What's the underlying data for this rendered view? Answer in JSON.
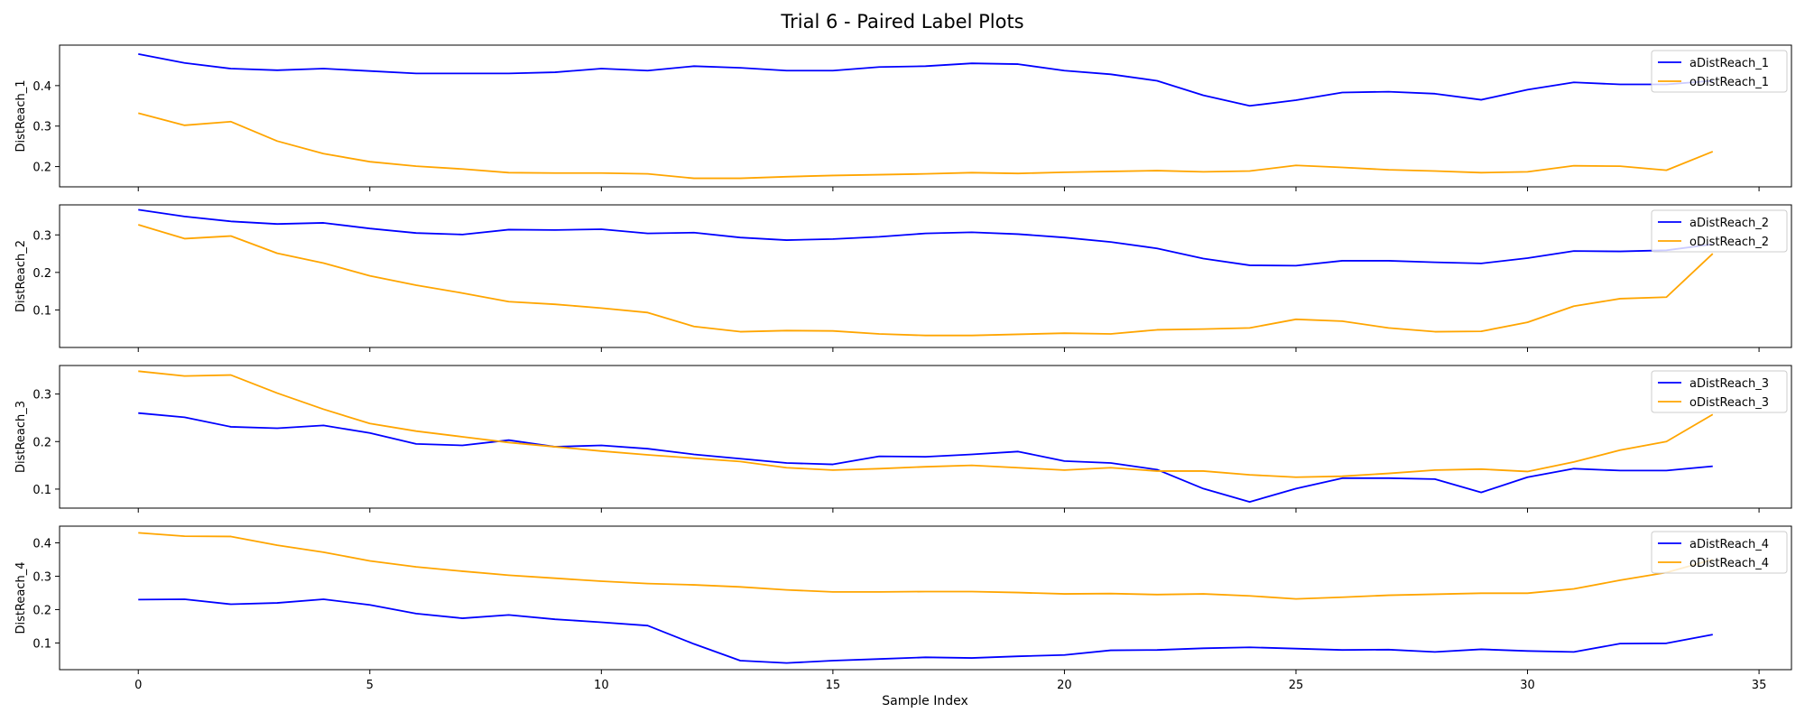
{
  "figure": {
    "title": "Trial 6 - Paired Label Plots"
  },
  "chart_data": {
    "type": "line",
    "title": "Trial 6 - Paired Label Plots",
    "xlabel": "Sample Index",
    "x": [
      0,
      1,
      2,
      3,
      4,
      5,
      6,
      7,
      8,
      9,
      10,
      11,
      12,
      13,
      14,
      15,
      16,
      17,
      18,
      19,
      20,
      21,
      22,
      23,
      24,
      25,
      26,
      27,
      28,
      29,
      30,
      31,
      32,
      33,
      34
    ],
    "xlim": [
      -1.7,
      35.7
    ],
    "xticks": [
      0,
      5,
      10,
      15,
      20,
      25,
      30,
      35
    ],
    "xtick_labels": [
      "0",
      "5",
      "10",
      "15",
      "20",
      "25",
      "30",
      "35"
    ],
    "legend_position": "top-right",
    "grid": false,
    "colors": {
      "a_series": "#0000ff",
      "o_series": "#ffa500"
    },
    "subplots": [
      {
        "ylabel": "DistReach_1",
        "ylim": [
          0.15,
          0.5
        ],
        "yticks": [
          0.2,
          0.3,
          0.4
        ],
        "ytick_labels": [
          "0.2",
          "0.3",
          "0.4"
        ],
        "series": [
          {
            "name": "aDistReach_1",
            "color": "#0000ff",
            "values": [
              0.478,
              0.456,
              0.442,
              0.438,
              0.442,
              0.436,
              0.43,
              0.43,
              0.43,
              0.433,
              0.442,
              0.437,
              0.448,
              0.444,
              0.437,
              0.437,
              0.446,
              0.448,
              0.455,
              0.453,
              0.437,
              0.428,
              0.412,
              0.376,
              0.35,
              0.364,
              0.383,
              0.385,
              0.38,
              0.365,
              0.39,
              0.408,
              0.403,
              0.403,
              0.412
            ]
          },
          {
            "name": "oDistReach_1",
            "color": "#ffa500",
            "values": [
              0.332,
              0.302,
              0.311,
              0.263,
              0.232,
              0.212,
              0.201,
              0.194,
              0.185,
              0.184,
              0.184,
              0.182,
              0.171,
              0.171,
              0.175,
              0.178,
              0.18,
              0.182,
              0.185,
              0.183,
              0.186,
              0.188,
              0.19,
              0.187,
              0.189,
              0.203,
              0.198,
              0.192,
              0.189,
              0.185,
              0.187,
              0.202,
              0.201,
              0.191,
              0.237
            ]
          }
        ]
      },
      {
        "ylabel": "DistReach_2",
        "ylim": [
          0.0,
          0.38
        ],
        "yticks": [
          0.1,
          0.2,
          0.3
        ],
        "ytick_labels": [
          "0.1",
          "0.2",
          "0.3"
        ],
        "series": [
          {
            "name": "aDistReach_2",
            "color": "#0000ff",
            "values": [
              0.367,
              0.349,
              0.336,
              0.329,
              0.332,
              0.317,
              0.305,
              0.301,
              0.314,
              0.313,
              0.315,
              0.304,
              0.306,
              0.293,
              0.286,
              0.289,
              0.295,
              0.304,
              0.307,
              0.302,
              0.293,
              0.281,
              0.264,
              0.237,
              0.219,
              0.218,
              0.231,
              0.231,
              0.227,
              0.224,
              0.238,
              0.257,
              0.256,
              0.259,
              0.275
            ]
          },
          {
            "name": "oDistReach_2",
            "color": "#ffa500",
            "values": [
              0.327,
              0.29,
              0.297,
              0.251,
              0.225,
              0.191,
              0.166,
              0.145,
              0.122,
              0.115,
              0.105,
              0.093,
              0.056,
              0.042,
              0.045,
              0.044,
              0.036,
              0.032,
              0.032,
              0.035,
              0.038,
              0.036,
              0.047,
              0.049,
              0.052,
              0.075,
              0.07,
              0.052,
              0.042,
              0.043,
              0.067,
              0.11,
              0.13,
              0.134,
              0.25
            ]
          }
        ]
      },
      {
        "ylabel": "DistReach_3",
        "ylim": [
          0.06,
          0.36
        ],
        "yticks": [
          0.1,
          0.2,
          0.3
        ],
        "ytick_labels": [
          "0.1",
          "0.2",
          "0.3"
        ],
        "series": [
          {
            "name": "aDistReach_3",
            "color": "#0000ff",
            "values": [
              0.26,
              0.251,
              0.231,
              0.228,
              0.234,
              0.218,
              0.195,
              0.192,
              0.203,
              0.189,
              0.192,
              0.185,
              0.173,
              0.164,
              0.155,
              0.152,
              0.169,
              0.168,
              0.173,
              0.179,
              0.159,
              0.155,
              0.141,
              0.101,
              0.073,
              0.101,
              0.123,
              0.123,
              0.121,
              0.093,
              0.125,
              0.143,
              0.139,
              0.139,
              0.148
            ]
          },
          {
            "name": "oDistReach_3",
            "color": "#ffa500",
            "values": [
              0.348,
              0.338,
              0.34,
              0.302,
              0.268,
              0.238,
              0.222,
              0.21,
              0.198,
              0.189,
              0.18,
              0.172,
              0.165,
              0.158,
              0.145,
              0.14,
              0.143,
              0.147,
              0.15,
              0.145,
              0.14,
              0.145,
              0.138,
              0.138,
              0.13,
              0.125,
              0.127,
              0.133,
              0.14,
              0.142,
              0.137,
              0.157,
              0.182,
              0.2,
              0.257
            ]
          }
        ]
      },
      {
        "ylabel": "DistReach_4",
        "ylim": [
          0.02,
          0.45
        ],
        "yticks": [
          0.1,
          0.2,
          0.3,
          0.4
        ],
        "ytick_labels": [
          "0.1",
          "0.2",
          "0.3",
          "0.4"
        ],
        "series": [
          {
            "name": "aDistReach_4",
            "color": "#0000ff",
            "values": [
              0.23,
              0.231,
              0.216,
              0.22,
              0.231,
              0.214,
              0.188,
              0.174,
              0.184,
              0.171,
              0.162,
              0.152,
              0.097,
              0.047,
              0.04,
              0.047,
              0.052,
              0.057,
              0.055,
              0.06,
              0.064,
              0.078,
              0.079,
              0.084,
              0.087,
              0.083,
              0.079,
              0.08,
              0.073,
              0.081,
              0.076,
              0.073,
              0.098,
              0.099,
              0.125
            ]
          },
          {
            "name": "oDistReach_4",
            "color": "#ffa500",
            "values": [
              0.43,
              0.42,
              0.419,
              0.393,
              0.372,
              0.346,
              0.328,
              0.315,
              0.303,
              0.294,
              0.285,
              0.278,
              0.274,
              0.268,
              0.259,
              0.253,
              0.253,
              0.254,
              0.254,
              0.251,
              0.247,
              0.248,
              0.245,
              0.247,
              0.241,
              0.232,
              0.237,
              0.243,
              0.246,
              0.249,
              0.249,
              0.262,
              0.288,
              0.311,
              0.35
            ]
          }
        ]
      }
    ]
  }
}
